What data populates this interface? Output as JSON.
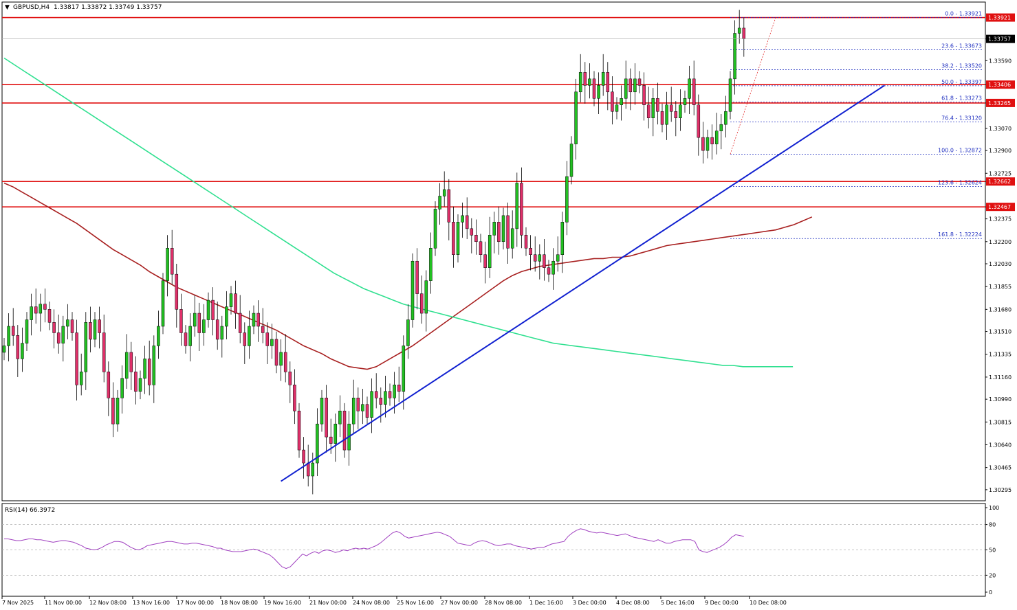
{
  "header": {
    "symbol_label": "GBPUSD,H4",
    "ohlc_text": "1.33817 1.33872 1.33749 1.33757"
  },
  "rsi": {
    "label": "RSI(14) 66.3972",
    "levels": [
      100,
      80,
      50,
      20,
      0
    ],
    "values": [
      63,
      63,
      62,
      61,
      61,
      62,
      63,
      63,
      62,
      62,
      61,
      60,
      59,
      60,
      61,
      61,
      60,
      59,
      57,
      55,
      52,
      51,
      50,
      51,
      53,
      56,
      58,
      60,
      60,
      59,
      56,
      53,
      51,
      50,
      52,
      55,
      56,
      57,
      58,
      59,
      60,
      60,
      59,
      58,
      57,
      57,
      58,
      58,
      57,
      56,
      55,
      54,
      52,
      52,
      50,
      49,
      48,
      48,
      48,
      49,
      50,
      51,
      50,
      48,
      46,
      44,
      40,
      35,
      30,
      28,
      30,
      35,
      40,
      45,
      43,
      46,
      48,
      46,
      49,
      50,
      49,
      47,
      48,
      50,
      49,
      51,
      52,
      51,
      52,
      51,
      53,
      55,
      58,
      62,
      66,
      70,
      72,
      70,
      66,
      64,
      65,
      66,
      67,
      68,
      69,
      70,
      71,
      70,
      68,
      66,
      62,
      58,
      57,
      56,
      55,
      58,
      60,
      61,
      60,
      58,
      56,
      55,
      56,
      57,
      57,
      55,
      54,
      53,
      52,
      51,
      52,
      53,
      53,
      55,
      57,
      58,
      59,
      60,
      66,
      70,
      73,
      75,
      74,
      72,
      71,
      70,
      71,
      70,
      69,
      68,
      67,
      68,
      69,
      67,
      65,
      64,
      63,
      62,
      61,
      60,
      62,
      60,
      58,
      58,
      60,
      61,
      62,
      62,
      62,
      60,
      50,
      48,
      47,
      49,
      51,
      53,
      56,
      60,
      65,
      68,
      67,
      66
    ]
  },
  "chart_data": {
    "type": "candlestick",
    "symbol": "GBPUSD",
    "timeframe": "H4",
    "ylim": [
      1.3021,
      1.3404
    ],
    "y_ticks": [
      1.33757,
      1.3359,
      1.33406,
      1.33265,
      1.3307,
      1.329,
      1.32725,
      1.32662,
      1.32467,
      1.32375,
      1.322,
      1.3203,
      1.31855,
      1.3168,
      1.3151,
      1.31335,
      1.3116,
      1.3099,
      1.30815,
      1.3064,
      1.30465,
      1.30295
    ],
    "x_labels": [
      "7 Nov 2025",
      "11 Nov 00:00",
      "12 Nov 08:00",
      "13 Nov 16:00",
      "17 Nov 00:00",
      "18 Nov 08:00",
      "19 Nov 16:00",
      "21 Nov 00:00",
      "24 Nov 08:00",
      "25 Nov 16:00",
      "27 Nov 00:00",
      "28 Nov 08:00",
      "1 Dec 16:00",
      "3 Dec 00:00",
      "4 Dec 08:00",
      "5 Dec 16:00",
      "9 Dec 00:00",
      "10 Dec 08:00"
    ],
    "current_price": 1.33757,
    "resistance_levels": [
      {
        "value": 1.33921,
        "label": "1.33921"
      },
      {
        "value": 1.33406,
        "label": "1.33406"
      },
      {
        "value": 1.33265,
        "label": "1.33265"
      },
      {
        "value": 1.32662,
        "label": "1.32662"
      },
      {
        "value": 1.32467,
        "label": "1.32467"
      }
    ],
    "fibonacci": [
      {
        "label": "0.0 - 1.33921",
        "value": 1.33921
      },
      {
        "label": "23.6 - 1.33673",
        "value": 1.33673
      },
      {
        "label": "38.2 - 1.33520",
        "value": 1.3352
      },
      {
        "label": "50.0 - 1.33397",
        "value": 1.33397
      },
      {
        "label": "61.8 - 1.33273",
        "value": 1.33273
      },
      {
        "label": "76.4 - 1.33120",
        "value": 1.3312
      },
      {
        "label": "100.0 - 1.32872",
        "value": 1.32872
      },
      {
        "label": "123.6 - 1.32624",
        "value": 1.32624
      },
      {
        "label": "161.8 - 1.32224",
        "value": 1.32224
      }
    ],
    "trendline": {
      "from": 1.3036,
      "to": 1.334
    },
    "closes": [
      1.314,
      1.3155,
      1.3148,
      1.313,
      1.3142,
      1.316,
      1.317,
      1.3165,
      1.3172,
      1.3168,
      1.3158,
      1.315,
      1.3142,
      1.3155,
      1.316,
      1.315,
      1.311,
      1.312,
      1.3158,
      1.3145,
      1.316,
      1.315,
      1.312,
      1.31,
      1.308,
      1.31,
      1.3115,
      1.3135,
      1.312,
      1.3105,
      1.3115,
      1.313,
      1.311,
      1.314,
      1.3155,
      1.319,
      1.3215,
      1.3195,
      1.3168,
      1.315,
      1.314,
      1.3155,
      1.3165,
      1.315,
      1.316,
      1.3175,
      1.316,
      1.3145,
      1.3155,
      1.317,
      1.318,
      1.3165,
      1.315,
      1.314,
      1.3155,
      1.3165,
      1.3155,
      1.315,
      1.314,
      1.3145,
      1.3125,
      1.3135,
      1.312,
      1.311,
      1.309,
      1.306,
      1.305,
      1.304,
      1.305,
      1.308,
      1.31,
      1.307,
      1.3065,
      1.308,
      1.309,
      1.306,
      1.308,
      1.31,
      1.309,
      1.3095,
      1.3085,
      1.3105,
      1.31,
      1.3095,
      1.3105,
      1.31,
      1.311,
      1.3105,
      1.314,
      1.316,
      1.3205,
      1.318,
      1.3165,
      1.319,
      1.3215,
      1.3245,
      1.3255,
      1.326,
      1.3235,
      1.321,
      1.3235,
      1.324,
      1.323,
      1.3225,
      1.322,
      1.321,
      1.32,
      1.3225,
      1.3235,
      1.322,
      1.324,
      1.3215,
      1.323,
      1.3265,
      1.3225,
      1.3215,
      1.321,
      1.3205,
      1.321,
      1.32,
      1.3195,
      1.3205,
      1.321,
      1.3235,
      1.327,
      1.3295,
      1.3335,
      1.335,
      1.334,
      1.3345,
      1.333,
      1.334,
      1.335,
      1.3335,
      1.332,
      1.3325,
      1.333,
      1.3345,
      1.3335,
      1.3345,
      1.334,
      1.3325,
      1.3315,
      1.333,
      1.332,
      1.331,
      1.3325,
      1.332,
      1.3315,
      1.3325,
      1.333,
      1.3345,
      1.3325,
      1.33,
      1.329,
      1.33,
      1.3295,
      1.3305,
      1.331,
      1.332,
      1.3345,
      1.338,
      1.3384,
      1.3376
    ]
  },
  "ma_red": [
    1.3265,
    1.3262,
    1.3258,
    1.3254,
    1.325,
    1.3246,
    1.3242,
    1.3238,
    1.3234,
    1.3229,
    1.3224,
    1.3219,
    1.3214,
    1.321,
    1.3206,
    1.3202,
    1.3197,
    1.3193,
    1.3189,
    1.3185,
    1.3182,
    1.3179,
    1.3176,
    1.3173,
    1.317,
    1.3167,
    1.3164,
    1.3161,
    1.3158,
    1.3155,
    1.3152,
    1.3148,
    1.3144,
    1.314,
    1.3137,
    1.3134,
    1.313,
    1.3127,
    1.3124,
    1.3123,
    1.3122,
    1.3124,
    1.3128,
    1.3132,
    1.3136,
    1.314,
    1.3145,
    1.315,
    1.3155,
    1.316,
    1.3165,
    1.317,
    1.3175,
    1.318,
    1.3185,
    1.319,
    1.3194,
    1.3197,
    1.3199,
    1.3201,
    1.3202,
    1.3203,
    1.3204,
    1.3205,
    1.3206,
    1.3207,
    1.3207,
    1.3208,
    1.3208,
    1.3209,
    1.3211,
    1.3213,
    1.3215,
    1.3217,
    1.3218,
    1.3219,
    1.322,
    1.3221,
    1.3222,
    1.3223,
    1.3224,
    1.3225,
    1.3226,
    1.3227,
    1.3228,
    1.3229,
    1.3231,
    1.3233,
    1.3236,
    1.3239
  ],
  "ma_green": [
    1.3361,
    1.3356,
    1.3351,
    1.3346,
    1.3341,
    1.3336,
    1.3331,
    1.3326,
    1.3321,
    1.3316,
    1.3311,
    1.3306,
    1.3301,
    1.3296,
    1.3291,
    1.3286,
    1.3281,
    1.3276,
    1.3271,
    1.3266,
    1.3261,
    1.3256,
    1.3251,
    1.3246,
    1.3241,
    1.3236,
    1.3231,
    1.3226,
    1.3221,
    1.3216,
    1.3211,
    1.3206,
    1.3201,
    1.3196,
    1.3192,
    1.3188,
    1.3184,
    1.3181,
    1.3178,
    1.3175,
    1.3172,
    1.317,
    1.3168,
    1.3166,
    1.3164,
    1.3162,
    1.316,
    1.3158,
    1.3156,
    1.3154,
    1.3152,
    1.315,
    1.3148,
    1.3146,
    1.3144,
    1.3142,
    1.3141,
    1.314,
    1.3139,
    1.3138,
    1.3137,
    1.3136,
    1.3135,
    1.3134,
    1.3133,
    1.3132,
    1.3131,
    1.313,
    1.3129,
    1.3128,
    1.3127,
    1.3126,
    1.3125,
    1.3125,
    1.3124,
    1.3124,
    1.3124,
    1.3124,
    1.3124,
    1.3124
  ]
}
